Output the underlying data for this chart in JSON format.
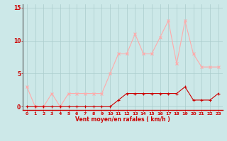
{
  "x": [
    0,
    1,
    2,
    3,
    4,
    5,
    6,
    7,
    8,
    9,
    10,
    11,
    12,
    13,
    14,
    15,
    16,
    17,
    18,
    19,
    20,
    21,
    22,
    23
  ],
  "mean_wind": [
    0,
    0,
    0,
    0,
    0,
    0,
    0,
    0,
    0,
    0,
    0,
    1,
    2,
    2,
    2,
    2,
    2,
    2,
    2,
    3,
    1,
    1,
    1,
    2
  ],
  "gust_wind": [
    3,
    0,
    0,
    2,
    0,
    2,
    2,
    2,
    2,
    2,
    5,
    8,
    8,
    11,
    8,
    8,
    10.5,
    13,
    6.5,
    13,
    8,
    6,
    6,
    6
  ],
  "mean_color": "#cc0000",
  "gust_color": "#ffaaaa",
  "bg_color": "#cce8e8",
  "grid_color": "#aacccc",
  "xlabel": "Vent moyen/en rafales ( km/h )",
  "xlabel_color": "#cc0000",
  "yticks": [
    0,
    5,
    10,
    15
  ],
  "xticks": [
    0,
    1,
    2,
    3,
    4,
    5,
    6,
    7,
    8,
    9,
    10,
    11,
    12,
    13,
    14,
    15,
    16,
    17,
    18,
    19,
    20,
    21,
    22,
    23
  ],
  "ylim": [
    -0.5,
    15.5
  ],
  "xlim": [
    -0.5,
    23.5
  ],
  "tick_color": "#cc0000",
  "spine_left_color": "#555555",
  "spine_bottom_color": "#cc0000"
}
